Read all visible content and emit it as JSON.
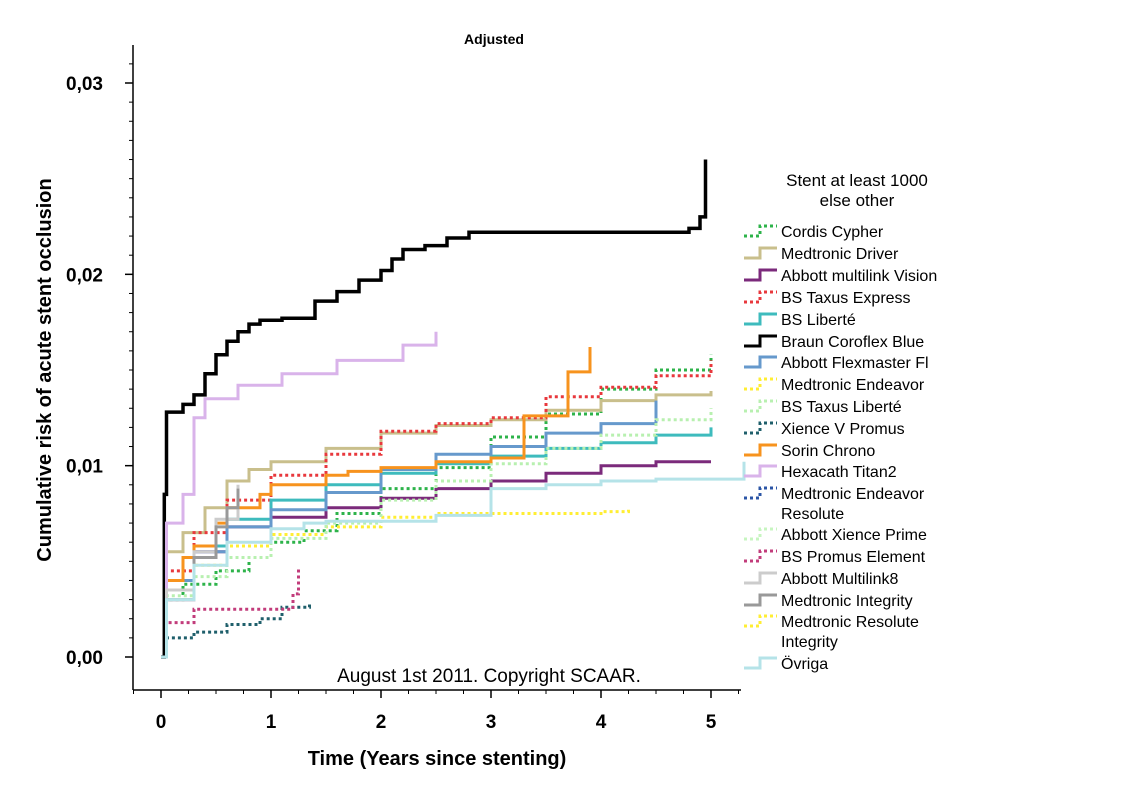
{
  "chart_data": {
    "type": "line",
    "title": "Adjusted",
    "xlabel": "Time (Years since stenting)",
    "ylabel": "Cumulative risk of acute stent occlusion",
    "xlim": [
      -0.25,
      5.3
    ],
    "ylim": [
      -0.0015,
      0.0315
    ],
    "x_ticks": [
      0,
      1,
      2,
      3,
      4,
      5
    ],
    "x_tick_labels": [
      "0",
      "1",
      "2",
      "3",
      "4",
      "5"
    ],
    "y_ticks": [
      0.0,
      0.01,
      0.02,
      0.03
    ],
    "y_tick_labels": [
      "0,00",
      "0,01",
      "0,02",
      "0,03"
    ],
    "grid": false,
    "legend_position": "right",
    "legend_title": [
      "Stent at least 1000",
      "else other"
    ],
    "annotation": "August 1st 2011. Copyright SCAAR.",
    "series": [
      {
        "name": "Cordis Cypher",
        "color": "#2db34a",
        "style": "dashed",
        "x": [
          0,
          0.05,
          0.2,
          0.5,
          0.8,
          1.0,
          1.3,
          1.6,
          2.0,
          2.5,
          3.0,
          3.5,
          4.0,
          4.5,
          5.0
        ],
        "y": [
          0,
          0.003,
          0.0038,
          0.0045,
          0.0052,
          0.006,
          0.0066,
          0.0075,
          0.0088,
          0.0099,
          0.0115,
          0.0127,
          0.014,
          0.015,
          0.0158
        ]
      },
      {
        "name": "Medtronic Driver",
        "color": "#c9bf8c",
        "style": "solid",
        "x": [
          0,
          0.05,
          0.2,
          0.4,
          0.6,
          0.8,
          1.0,
          1.5,
          2.0,
          2.5,
          3.0,
          3.5,
          4.0,
          4.5,
          5.0
        ],
        "y": [
          0,
          0.0055,
          0.0065,
          0.0078,
          0.0092,
          0.0098,
          0.0102,
          0.0109,
          0.0117,
          0.0121,
          0.0124,
          0.0129,
          0.0134,
          0.0137,
          0.0139
        ]
      },
      {
        "name": "Abbott multilink Vision",
        "color": "#7b2a7b",
        "style": "solid",
        "x": [
          0,
          0.05,
          0.3,
          0.6,
          1.0,
          1.5,
          2.0,
          2.5,
          3.0,
          3.5,
          4.0,
          4.5,
          5.0
        ],
        "y": [
          0,
          0.003,
          0.0055,
          0.0068,
          0.0073,
          0.0078,
          0.0083,
          0.0088,
          0.0092,
          0.0096,
          0.01,
          0.0102,
          0.0102
        ]
      },
      {
        "name": "BS Taxus Express",
        "color": "#e8383d",
        "style": "dashed",
        "x": [
          0,
          0.05,
          0.3,
          0.6,
          1.0,
          1.5,
          2.0,
          2.5,
          3.0,
          3.5,
          4.0,
          4.5,
          5.0
        ],
        "y": [
          0,
          0.0045,
          0.0065,
          0.0082,
          0.0095,
          0.0106,
          0.0118,
          0.0122,
          0.0125,
          0.0136,
          0.0141,
          0.0147,
          0.0155
        ]
      },
      {
        "name": "BS Liberté",
        "color": "#3ebbbd",
        "style": "solid",
        "x": [
          0,
          0.05,
          0.3,
          0.6,
          1.0,
          1.5,
          2.0,
          2.5,
          3.0,
          3.5,
          4.0,
          4.5,
          5.0
        ],
        "y": [
          0,
          0.004,
          0.0058,
          0.0072,
          0.0082,
          0.009,
          0.0096,
          0.0101,
          0.0105,
          0.0109,
          0.0112,
          0.0116,
          0.012
        ]
      },
      {
        "name": "Braun Coroflex Blue",
        "color": "#000000",
        "style": "solid",
        "x": [
          0,
          0.03,
          0.05,
          0.2,
          0.3,
          0.4,
          0.5,
          0.6,
          0.7,
          0.8,
          0.9,
          1.1,
          1.4,
          1.6,
          1.8,
          2.0,
          2.1,
          2.2,
          2.4,
          2.6,
          2.8,
          3.0,
          4.8,
          4.9,
          4.95
        ],
        "y": [
          0,
          0.0085,
          0.0128,
          0.0132,
          0.0137,
          0.0148,
          0.0158,
          0.0165,
          0.017,
          0.0174,
          0.0176,
          0.0177,
          0.0186,
          0.0191,
          0.0197,
          0.0202,
          0.0208,
          0.0213,
          0.0215,
          0.0219,
          0.0222,
          0.0222,
          0.0224,
          0.023,
          0.026
        ]
      },
      {
        "name": "Abbott Flexmaster Fl",
        "color": "#6699cc",
        "style": "solid",
        "x": [
          0,
          0.05,
          0.3,
          0.6,
          1.0,
          1.5,
          2.0,
          2.5,
          3.0,
          3.5,
          4.0,
          4.5
        ],
        "y": [
          0,
          0.004,
          0.0055,
          0.0068,
          0.0077,
          0.0086,
          0.0098,
          0.0106,
          0.011,
          0.0117,
          0.0122,
          0.0134
        ]
      },
      {
        "name": "Medtronic Endeavor",
        "color": "#ffee33",
        "style": "dashed",
        "x": [
          0,
          0.05,
          0.3,
          0.6,
          1.0,
          1.5,
          2.0,
          2.5,
          3.0,
          3.5,
          4.0,
          4.25
        ],
        "y": [
          0,
          0.0035,
          0.0048,
          0.0058,
          0.0064,
          0.0068,
          0.0073,
          0.0075,
          0.0075,
          0.0075,
          0.0076,
          0.0077
        ]
      },
      {
        "name": "BS Taxus Liberté",
        "color": "#b8f0b0",
        "style": "dashed",
        "x": [
          0,
          0.05,
          0.3,
          0.6,
          1.0,
          1.5,
          2.0,
          2.5,
          3.0,
          3.5,
          4.0,
          4.5,
          5.0
        ],
        "y": [
          0,
          0.0032,
          0.0042,
          0.0052,
          0.0062,
          0.007,
          0.0082,
          0.0092,
          0.0101,
          0.0109,
          0.0116,
          0.0124,
          0.013
        ]
      },
      {
        "name": "Xience V Promus",
        "color": "#1f5f6b",
        "style": "dashed",
        "x": [
          0,
          0.05,
          0.3,
          0.6,
          0.9,
          1.1,
          1.35
        ],
        "y": [
          0,
          0.001,
          0.0013,
          0.0017,
          0.002,
          0.0026,
          0.0029
        ]
      },
      {
        "name": "Sorin Chrono",
        "color": "#f7931e",
        "style": "solid",
        "x": [
          0,
          0.05,
          0.2,
          0.3,
          0.5,
          0.6,
          0.9,
          1.0,
          1.5,
          1.7,
          2.0,
          2.5,
          3.0,
          3.3,
          3.7,
          3.9
        ],
        "y": [
          0,
          0.004,
          0.0052,
          0.0058,
          0.007,
          0.0078,
          0.0085,
          0.009,
          0.0095,
          0.0097,
          0.0099,
          0.0102,
          0.0104,
          0.0126,
          0.0149,
          0.0162
        ]
      },
      {
        "name": "Hexacath Titan2",
        "color": "#d9b3ea",
        "style": "solid",
        "x": [
          0,
          0.05,
          0.2,
          0.3,
          0.4,
          0.7,
          1.1,
          1.6,
          2.2,
          2.5
        ],
        "y": [
          0,
          0.007,
          0.0085,
          0.0125,
          0.0135,
          0.0142,
          0.0148,
          0.0155,
          0.0163,
          0.017
        ]
      },
      {
        "name": "Medtronic Endeavor Resolute",
        "color": "#2b55a6",
        "style": "dashed",
        "x": [],
        "y": []
      },
      {
        "name": "Abbott Xience Prime",
        "color": "#c7f5c0",
        "style": "dashed",
        "x": [],
        "y": []
      },
      {
        "name": "BS Promus Element",
        "color": "#c23c7b",
        "style": "dashed",
        "x": [
          0,
          0.05,
          0.3,
          0.6,
          1.0,
          1.1,
          1.2,
          1.25
        ],
        "y": [
          0,
          0.0018,
          0.0025,
          0.0025,
          0.0025,
          0.0025,
          0.0033,
          0.0046
        ]
      },
      {
        "name": "Abbott Multilink8",
        "color": "#cccccc",
        "style": "solid",
        "x": [
          0,
          0.05,
          0.3,
          0.5,
          0.7
        ],
        "y": [
          0,
          0.0035,
          0.0055,
          0.0072,
          0.009
        ]
      },
      {
        "name": "Medtronic Integrity",
        "color": "#999999",
        "style": "solid",
        "x": [
          0,
          0.05,
          0.3,
          0.5,
          0.6,
          0.7
        ],
        "y": [
          0,
          0.003,
          0.0052,
          0.0068,
          0.0078,
          0.0088
        ]
      },
      {
        "name": "Medtronic Resolute Integrity",
        "color": "#ffee33",
        "style": "dashed",
        "x": [],
        "y": []
      },
      {
        "name": "Övriga",
        "color": "#b5e3e8",
        "style": "solid",
        "x": [
          0,
          0.05,
          0.3,
          0.6,
          1.0,
          1.3,
          1.5,
          2.0,
          2.5,
          3.0,
          3.5,
          4.0,
          4.5,
          5.0,
          5.3
        ],
        "y": [
          0,
          0.003,
          0.0048,
          0.006,
          0.0067,
          0.007,
          0.0071,
          0.0071,
          0.0074,
          0.0088,
          0.009,
          0.0092,
          0.0093,
          0.0093,
          0.0102
        ]
      }
    ]
  }
}
